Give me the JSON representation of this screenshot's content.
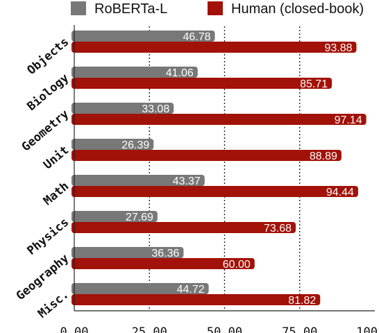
{
  "chart_data": {
    "type": "bar",
    "orientation": "horizontal",
    "categories": [
      "Objects",
      "Biology",
      "Geometry",
      "Unit",
      "Math",
      "Physics",
      "Geography",
      "Misc."
    ],
    "series": [
      {
        "name": "RoBERTa-L",
        "color": "#787878",
        "values": [
          46.78,
          41.06,
          33.08,
          26.39,
          43.37,
          27.69,
          36.36,
          44.72
        ]
      },
      {
        "name": "Human (closed-book)",
        "color": "#a21208",
        "values": [
          93.88,
          85.71,
          97.14,
          88.89,
          94.44,
          73.68,
          60.0,
          81.82
        ]
      }
    ],
    "xlim": [
      0,
      100
    ],
    "xticks": [
      "0.00",
      "25.00",
      "50.00",
      "75.00",
      "100"
    ],
    "grid": "vertical dotted",
    "legend_position": "top"
  }
}
